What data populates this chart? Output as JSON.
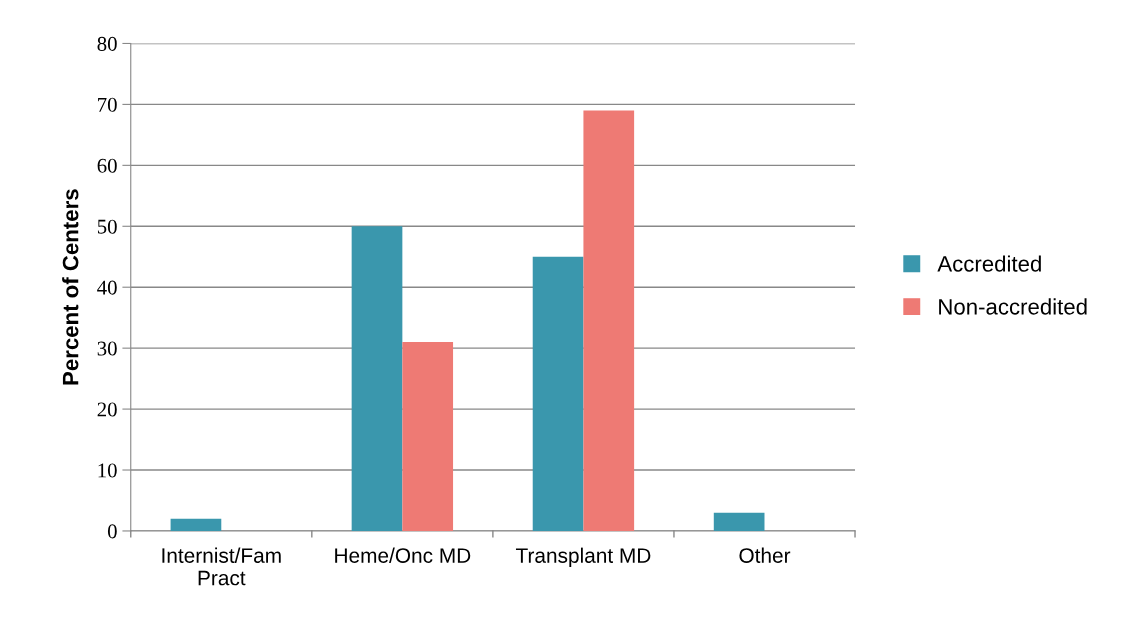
{
  "chart_data": {
    "type": "bar",
    "ylabel": "Percent of Centers",
    "categories": [
      "Internist/Fam\nPract",
      "Heme/Onc MD",
      "Transplant MD",
      "Other"
    ],
    "series": [
      {
        "name": "Accredited",
        "color": "#3a97ad",
        "values": [
          2,
          50,
          45,
          3
        ]
      },
      {
        "name": "Non-accredited",
        "color": "#ee7a74",
        "values": [
          0,
          31,
          69,
          0
        ]
      }
    ],
    "ylim": [
      0,
      80
    ],
    "yticks": [
      0,
      10,
      20,
      30,
      40,
      50,
      60,
      70,
      80
    ],
    "grid": "y",
    "legend": "right"
  }
}
